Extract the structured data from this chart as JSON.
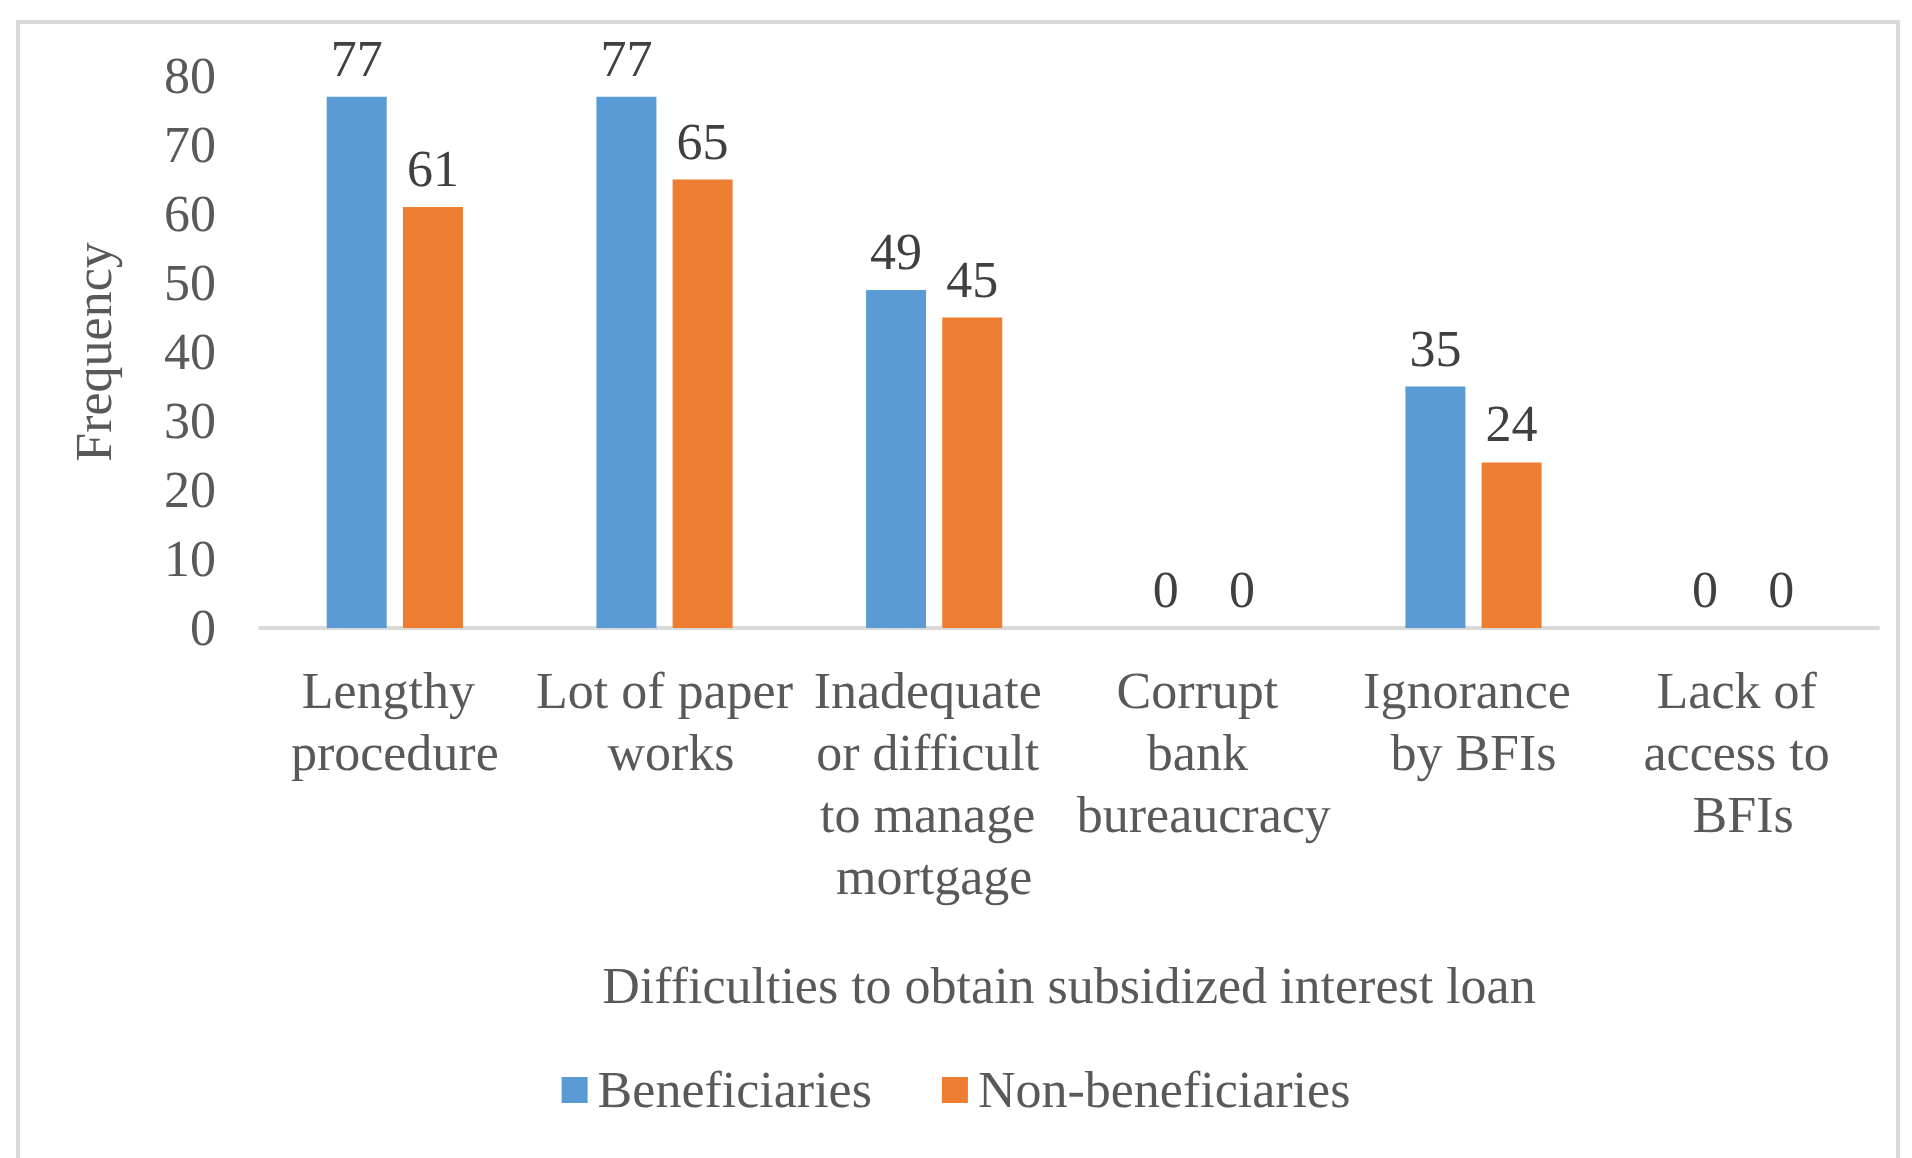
{
  "chart_data": {
    "type": "bar",
    "xlabel": "Difficulties to obtain subsidized interest loan",
    "ylabel": "Frequency",
    "categories": [
      "Lengthy procedure",
      "Lot of paper works",
      "Inadequate or difficult to manage mortgage",
      "Corrupt bank bureaucracy",
      "Ignorance by BFIs",
      "Lack of access to BFIs"
    ],
    "series": [
      {
        "name": "Beneficiaries",
        "color": "#5b9bd5",
        "values": [
          77,
          77,
          49,
          0,
          35,
          0
        ]
      },
      {
        "name": "Non-beneficiaries",
        "color": "#ed7d31",
        "values": [
          61,
          65,
          45,
          0,
          24,
          0
        ]
      }
    ],
    "ylim": [
      0,
      80
    ],
    "yticks": [
      0,
      10,
      20,
      30,
      40,
      50,
      60,
      70,
      80
    ],
    "grid": false,
    "legend": "bottom",
    "data_labels": true
  }
}
